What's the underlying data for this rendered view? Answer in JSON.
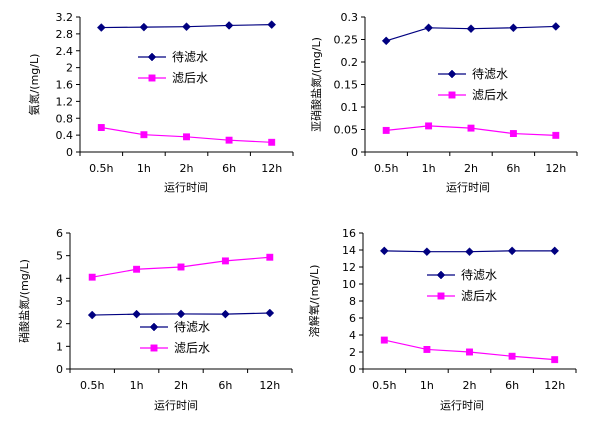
{
  "chart_data": [
    {
      "type": "line",
      "categories": [
        "0.5h",
        "1h",
        "2h",
        "6h",
        "12h"
      ],
      "ylabel": "氨氮/(mg/L)",
      "xlabel": "运行时间",
      "ylim": [
        0,
        3.2
      ],
      "yticks": [
        "0",
        "0.4",
        "0.8",
        "1.2",
        "1.6",
        "2",
        "2.4",
        "2.8",
        "3.2"
      ],
      "legend_position": "upper-middle",
      "series": [
        {
          "name": "待滤水",
          "color": "#000080",
          "marker": "diamond",
          "values": [
            2.95,
            2.96,
            2.97,
            3.0,
            3.02
          ]
        },
        {
          "name": "滤后水",
          "color": "#ff00ff",
          "marker": "square",
          "values": [
            0.58,
            0.41,
            0.36,
            0.28,
            0.23
          ]
        }
      ]
    },
    {
      "type": "line",
      "categories": [
        "0.5h",
        "1h",
        "2h",
        "6h",
        "12h"
      ],
      "ylabel": "亚硝酸盐氮/(mg/L)",
      "xlabel": "运行时间",
      "ylim": [
        0,
        0.3
      ],
      "yticks": [
        "0",
        "0.05",
        "0.1",
        "0.15",
        "0.2",
        "0.25",
        "0.3"
      ],
      "legend_position": "middle-right",
      "series": [
        {
          "name": "待滤水",
          "color": "#000080",
          "marker": "diamond",
          "values": [
            0.247,
            0.276,
            0.274,
            0.276,
            0.279
          ]
        },
        {
          "name": "滤后水",
          "color": "#ff00ff",
          "marker": "square",
          "values": [
            0.048,
            0.058,
            0.053,
            0.041,
            0.037
          ]
        }
      ]
    },
    {
      "type": "line",
      "categories": [
        "0.5h",
        "1h",
        "2h",
        "6h",
        "12h"
      ],
      "ylabel": "硝酸盐氮/(mg/L)",
      "xlabel": "运行时间",
      "ylim": [
        0,
        6
      ],
      "yticks": [
        "0",
        "1",
        "2",
        "3",
        "4",
        "5",
        "6"
      ],
      "legend_position": "lower-middle",
      "series": [
        {
          "name": "待滤水",
          "color": "#000080",
          "marker": "diamond",
          "values": [
            2.38,
            2.42,
            2.43,
            2.42,
            2.47
          ]
        },
        {
          "name": "滤后水",
          "color": "#ff00ff",
          "marker": "square",
          "values": [
            4.05,
            4.4,
            4.5,
            4.77,
            4.93
          ]
        }
      ]
    },
    {
      "type": "line",
      "categories": [
        "0.5h",
        "1h",
        "2h",
        "6h",
        "12h"
      ],
      "ylabel": "溶解氧/(mg/L)",
      "xlabel": "运行时间",
      "ylim": [
        0,
        16
      ],
      "yticks": [
        "0",
        "2",
        "4",
        "6",
        "8",
        "10",
        "12",
        "14",
        "16"
      ],
      "legend_position": "upper-middle",
      "series": [
        {
          "name": "待滤水",
          "color": "#000080",
          "marker": "diamond",
          "values": [
            13.9,
            13.8,
            13.8,
            13.9,
            13.9
          ]
        },
        {
          "name": "滤后水",
          "color": "#ff00ff",
          "marker": "square",
          "values": [
            3.4,
            2.3,
            2.0,
            1.5,
            1.1
          ]
        }
      ]
    }
  ]
}
